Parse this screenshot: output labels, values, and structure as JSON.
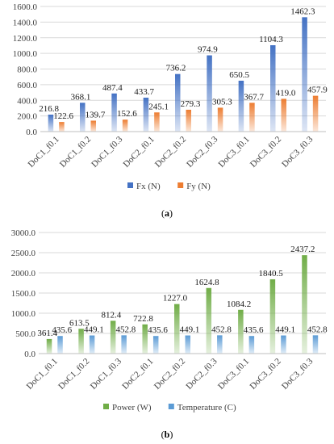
{
  "chart_data": [
    {
      "type": "bar",
      "panel": "a",
      "caption_letter": "a",
      "categories": [
        "DoC1_f0.1",
        "DoC1_f0.2",
        "DoC1_f0.3",
        "DoC2_f0.1",
        "DoC2_f0.2",
        "DoC2_f0.3",
        "DoC3_f0.1",
        "DoC3_f0.2",
        "DoC3_f0.3"
      ],
      "series": [
        {
          "name": "Fx (N)",
          "color": "#4472c4",
          "values": [
            216.8,
            368.1,
            487.4,
            433.7,
            736.2,
            974.9,
            650.5,
            1104.3,
            1462.3
          ],
          "labels": [
            "216.8",
            "368.1",
            "487.4",
            "433.7",
            "736.2",
            "974.9",
            "650.5",
            "1104.3",
            "1462.3"
          ]
        },
        {
          "name": "Fy (N)",
          "color": "#ed7d31",
          "values": [
            122.6,
            139.7,
            152.6,
            245.1,
            279.3,
            305.3,
            367.7,
            419.0,
            457.9
          ],
          "labels": [
            "122.6",
            "139.7",
            "152.6",
            "245.1",
            "279.3",
            "305.3",
            "367.7",
            "419.0",
            "457.9"
          ]
        }
      ],
      "ylim": [
        0,
        1600
      ],
      "yticks": [
        "0.0",
        "200.0",
        "400.0",
        "600.0",
        "800.0",
        "1000.0",
        "1200.0",
        "1400.0",
        "1600.0"
      ],
      "ytick_values": [
        0,
        200,
        400,
        600,
        800,
        1000,
        1200,
        1400,
        1600
      ],
      "grid": true,
      "legend": "bottom"
    },
    {
      "type": "bar",
      "panel": "b",
      "caption_letter": "b",
      "categories": [
        "DoC1_f0.1",
        "DoC1_f0.2",
        "DoC1_f0.3",
        "DoC2_f0.1",
        "DoC2_f0.2",
        "DoC2_f0.3",
        "DoC3_f0.1",
        "DoC3_f0.2",
        "DoC3_f0.3"
      ],
      "series": [
        {
          "name": "Power (W)",
          "color": "#70ad47",
          "values": [
            361.4,
            613.5,
            812.4,
            722.8,
            1227.0,
            1624.8,
            1084.2,
            1840.5,
            2437.2
          ],
          "labels": [
            "361.4",
            "613.5",
            "812.4",
            "722.8",
            "1227.0",
            "1624.8",
            "1084.2",
            "1840.5",
            "2437.2"
          ]
        },
        {
          "name": "Temperature (C)",
          "color": "#5b9bd5",
          "values": [
            435.6,
            449.1,
            452.8,
            435.6,
            449.1,
            452.8,
            435.6,
            449.1,
            452.8
          ],
          "labels": [
            "435.6",
            "449.1",
            "452.8",
            "435.6",
            "449.1",
            "452.8",
            "435.6",
            "449.1",
            "452.8"
          ]
        }
      ],
      "ylim": [
        0,
        3000
      ],
      "yticks": [
        "0.0",
        "500.0",
        "1000.0",
        "1500.0",
        "2000.0",
        "2500.0",
        "3000.0"
      ],
      "ytick_values": [
        0,
        500,
        1000,
        1500,
        2000,
        2500,
        3000
      ],
      "grid": true,
      "legend": "bottom"
    }
  ]
}
